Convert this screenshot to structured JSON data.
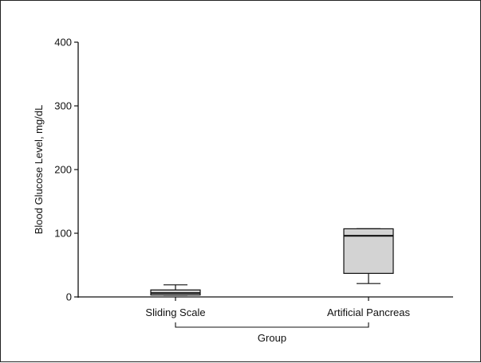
{
  "chart_data": {
    "type": "box",
    "title": "",
    "xlabel": "Group",
    "ylabel": "Blood Glucose Level, mg/dL",
    "ylim": [
      0,
      400
    ],
    "yticks": [
      0,
      100,
      200,
      300,
      400
    ],
    "categories": [
      "Sliding Scale",
      "Artificial Pancreas"
    ],
    "boxes": [
      {
        "category": "Sliding Scale",
        "whisker_low": 3,
        "q1": 3,
        "median": 6,
        "q3": 11,
        "whisker_high": 19
      },
      {
        "category": "Artificial Pancreas",
        "whisker_low": 21,
        "q1": 37,
        "median": 96,
        "q3": 107,
        "whisker_high": 107
      }
    ],
    "box_fill": "#d3d3d3",
    "line_color": "#111111",
    "grid": false
  }
}
